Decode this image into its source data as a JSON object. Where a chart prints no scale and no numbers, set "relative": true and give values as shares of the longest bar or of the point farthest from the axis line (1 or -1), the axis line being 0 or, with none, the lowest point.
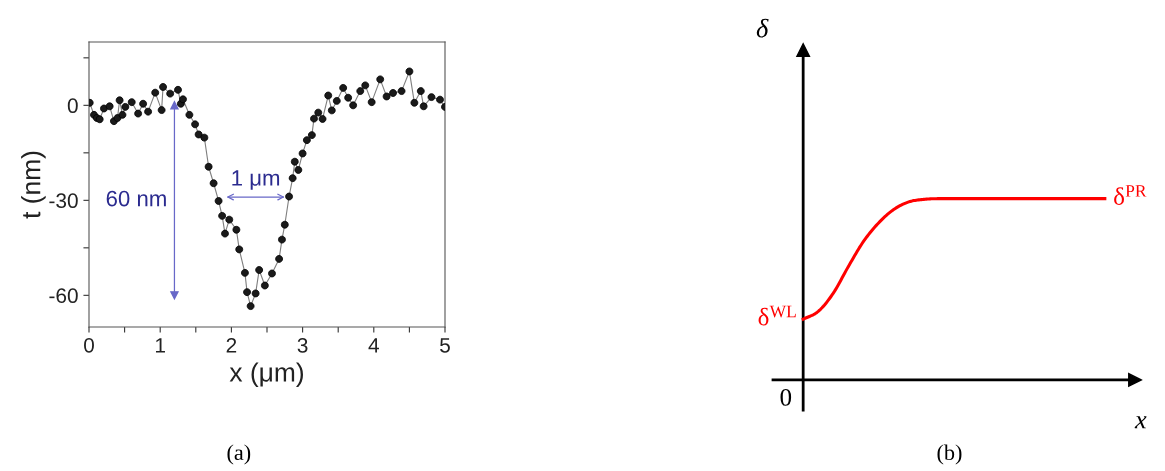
{
  "chart_data": [
    {
      "type": "line",
      "xlabel": "x (μm)",
      "ylabel": "t (nm)",
      "marker": "circle",
      "line_style": "solid",
      "grid": false,
      "legend": false,
      "xlim": [
        0,
        5
      ],
      "ylim": [
        -70,
        20
      ],
      "xticks": [
        0,
        {
          "value": 0.5,
          "label": null
        },
        1,
        {
          "value": 1.5,
          "label": null
        },
        2,
        {
          "value": 2.5,
          "label": null
        },
        3,
        {
          "value": 3.5,
          "label": null
        },
        4,
        {
          "value": 4.5,
          "label": null
        },
        5
      ],
      "yticks": [
        -60,
        {
          "value": -45,
          "label": null
        },
        -30,
        {
          "value": -15,
          "label": null
        },
        0,
        {
          "value": 15,
          "label": null
        }
      ],
      "series": [
        {
          "color": "#1a1a1a",
          "x": [
            0.01,
            0.07,
            0.11,
            0.15,
            0.21,
            0.29,
            0.35,
            0.4,
            0.43,
            0.47,
            0.51,
            0.6,
            0.69,
            0.76,
            0.83,
            0.93,
            1.02,
            1.04,
            1.14,
            1.25,
            1.29,
            1.32,
            1.41,
            1.49,
            1.54,
            1.62,
            1.68,
            1.75,
            1.82,
            1.87,
            1.91,
            1.97,
            2.07,
            2.11,
            2.19,
            2.22,
            2.27,
            2.34,
            2.39,
            2.47,
            2.57,
            2.67,
            2.71,
            2.75,
            2.81,
            2.86,
            2.89,
            2.94,
            3.0,
            3.06,
            3.13,
            3.16,
            3.22,
            3.28,
            3.36,
            3.41,
            3.48,
            3.57,
            3.64,
            3.71,
            3.81,
            3.88,
            3.97,
            4.09,
            4.18,
            4.27,
            4.39,
            4.5,
            4.57,
            4.66,
            4.7,
            4.81,
            4.93,
            5.0
          ],
          "values": [
            0.8,
            -3,
            -4,
            -4.4,
            -1,
            -0.3,
            -5,
            -4,
            1.6,
            -3,
            -0.5,
            1,
            -2.6,
            0.5,
            -2,
            4,
            -1.5,
            5.8,
            3.7,
            4.9,
            0.5,
            1.9,
            -3,
            -6,
            -9.2,
            -10.2,
            -19.4,
            -24.6,
            -30.2,
            -34.9,
            -40.5,
            -36.1,
            -39.3,
            -45.5,
            -52.9,
            -59,
            -63.4,
            -59.4,
            -52,
            -56.9,
            -53.1,
            -48.5,
            -42.4,
            -37.7,
            -28.8,
            -23,
            -17.8,
            -20.4,
            -15.2,
            -11,
            -9.4,
            -4.2,
            -2.3,
            -4.3,
            3.1,
            -1.6,
            1.4,
            5.5,
            2.4,
            0,
            4.5,
            6.3,
            1,
            8.2,
            2.8,
            3.9,
            4.5,
            10.7,
            0.8,
            4.5,
            -0.3,
            2.6,
            1.8,
            -0.5
          ]
        },
        {
          "color": "#6868c8",
          "marker": "triangle",
          "x": [
            1.2,
            1.2
          ],
          "values": [
            0,
            -60
          ]
        }
      ],
      "annotations": [
        "60 nm",
        "1 μm",
        "(a)"
      ]
    },
    {
      "type": "line",
      "relative": true,
      "xlabel": "x",
      "ylabel": "δ",
      "marker": "none",
      "line_style": "solid",
      "grid": false,
      "legend": false,
      "categories": [
        null,
        null,
        null,
        null,
        null,
        null,
        null,
        null,
        null,
        null,
        null,
        null,
        null,
        null,
        null,
        null,
        null,
        null,
        null,
        null,
        null
      ],
      "series": [
        {
          "color": "#ff0000",
          "values": [
            0.335,
            0.378,
            0.479,
            0.626,
            0.764,
            0.866,
            0.94,
            0.982,
            0.996,
            1,
            1,
            1,
            1,
            1,
            1,
            1,
            1,
            1,
            1,
            1,
            1
          ]
        }
      ],
      "annotations": [
        "0",
        "δ$^{WL}$",
        "δ$^{PR}$",
        "(b)"
      ]
    }
  ]
}
